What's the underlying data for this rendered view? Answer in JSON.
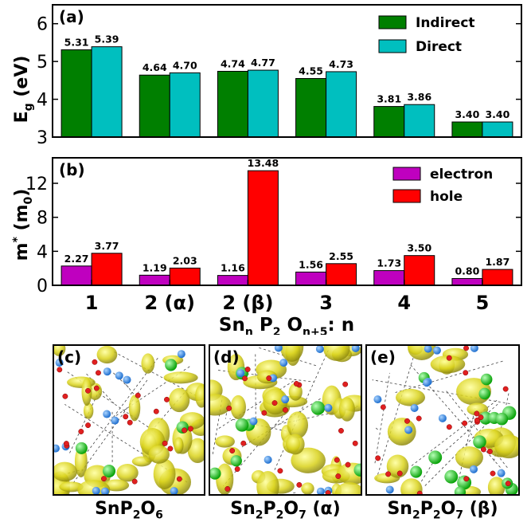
{
  "chart_data": [
    {
      "type": "bar",
      "panel_label": "(a)",
      "ylabel_main": "E",
      "ylabel_sub": "g",
      "ylabel_unit": "(eV)",
      "ylim": [
        3,
        6.5
      ],
      "yticks": [
        "3",
        "4",
        "5",
        "6"
      ],
      "legend_placement": "top-right",
      "series": [
        {
          "name": "Indirect",
          "color": "#007f00",
          "values": [
            5.31,
            4.64,
            4.74,
            4.55,
            3.81,
            3.4
          ],
          "labels": [
            "5.31",
            "4.64",
            "4.74",
            "4.55",
            "3.81",
            "3.40"
          ]
        },
        {
          "name": "Direct",
          "color": "#00bfbf",
          "values": [
            5.39,
            4.7,
            4.77,
            4.73,
            3.86,
            3.4
          ],
          "labels": [
            "5.39",
            "4.70",
            "4.77",
            "4.73",
            "3.86",
            "3.40"
          ]
        }
      ]
    },
    {
      "type": "bar",
      "panel_label": "(b)",
      "ylabel_main": "m",
      "ylabel_sup": "*",
      "ylabel_unit_open": "(m",
      "ylabel_unit_sub": "0",
      "ylabel_unit_close": ")",
      "ylim": [
        0,
        15
      ],
      "yticks": [
        "0",
        "4",
        "8",
        "12"
      ],
      "legend_placement": "top-right",
      "categories": [
        "1",
        "2 (α)",
        "2 (β)",
        "3",
        "4",
        "5"
      ],
      "xlabel": {
        "p1": "Sn",
        "s1": "n",
        "p2": "P",
        "s2": "2",
        "p3": "O",
        "s3": "n+5",
        "p4": ": n"
      },
      "series": [
        {
          "name": "electron",
          "color": "#bf00bf",
          "values": [
            2.27,
            1.19,
            1.16,
            1.56,
            1.73,
            0.8
          ],
          "labels": [
            "2.27",
            "1.19",
            "1.16",
            "1.56",
            "1.73",
            "0.80"
          ]
        },
        {
          "name": "hole",
          "color": "#ff0000",
          "values": [
            3.77,
            2.03,
            13.48,
            2.55,
            3.5,
            1.87
          ],
          "labels": [
            "3.77",
            "2.03",
            "13.48",
            "2.55",
            "3.50",
            "1.87"
          ]
        }
      ]
    }
  ],
  "structure_panels": [
    {
      "label": "(c)",
      "caption": {
        "p1": "SnP",
        "s1": "2",
        "p2": "O",
        "s2": "6",
        "p3": ""
      }
    },
    {
      "label": "(d)",
      "caption": {
        "p1": "Sn",
        "s1": "2",
        "p2": "P",
        "s2": "2",
        "p3": "O",
        "s3": "7",
        "p4": " (α)"
      }
    },
    {
      "label": "(e)",
      "caption": {
        "p1": "Sn",
        "s1": "2",
        "p2": "P",
        "s2": "2",
        "p3": "O",
        "s3": "7",
        "p4": " (β)"
      }
    }
  ]
}
